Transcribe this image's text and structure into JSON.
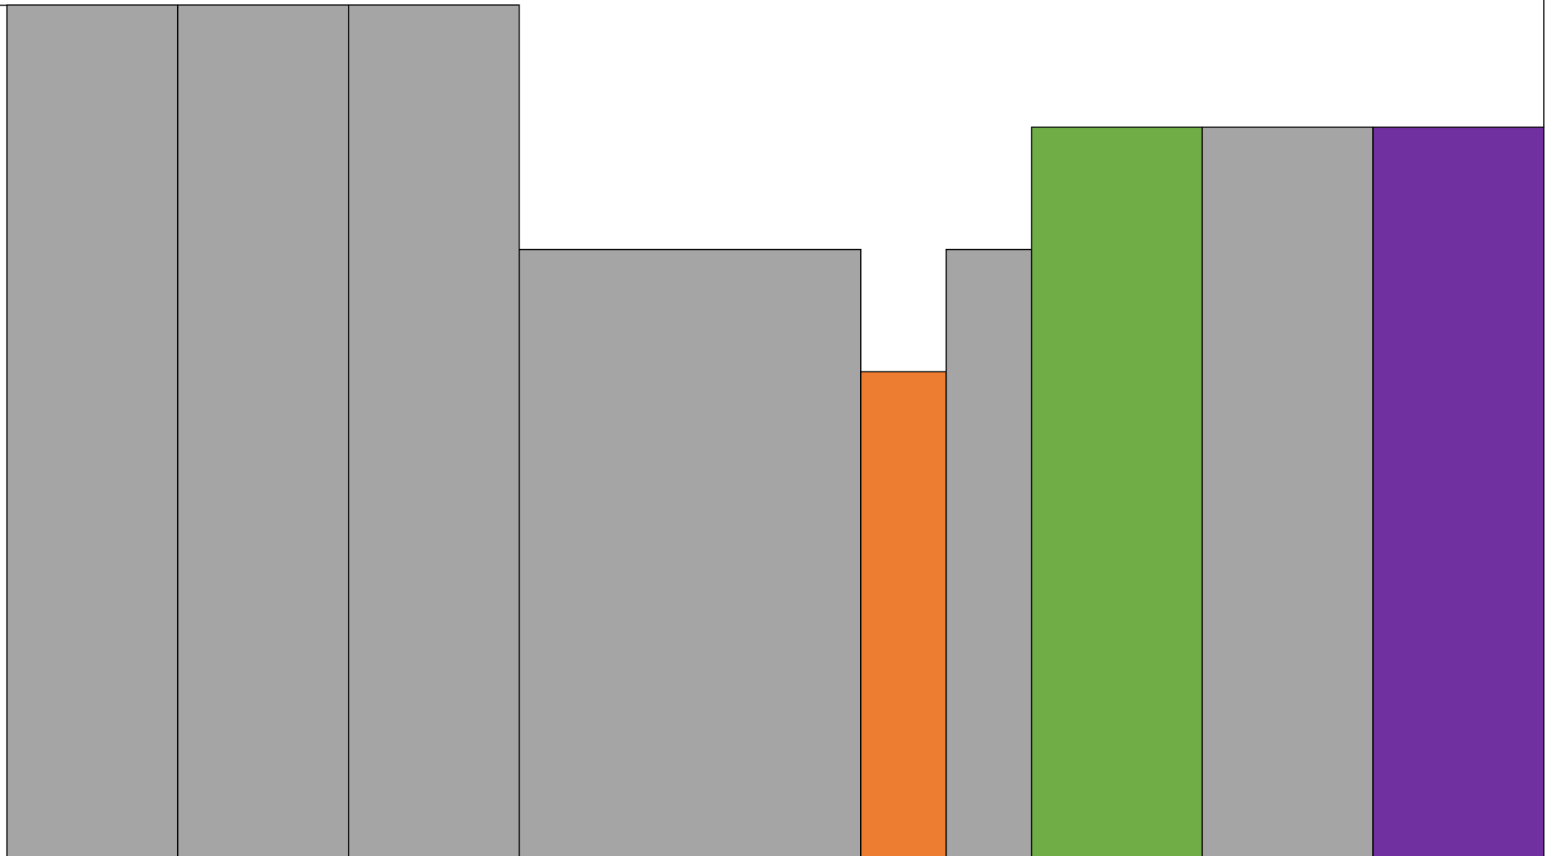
{
  "chart_data": {
    "type": "histogram",
    "bins": [
      0,
      1,
      2,
      3,
      5,
      5.5,
      6,
      7,
      8,
      9
    ],
    "values": [
      7,
      7,
      7,
      5,
      4,
      5,
      6,
      6,
      6
    ],
    "colors": [
      "#a5a5a5",
      "#a5a5a5",
      "#a5a5a5",
      "#a5a5a5",
      "#ed7d31",
      "#a5a5a5",
      "#70ad47",
      "#a5a5a5",
      "#7030a0"
    ]
  }
}
